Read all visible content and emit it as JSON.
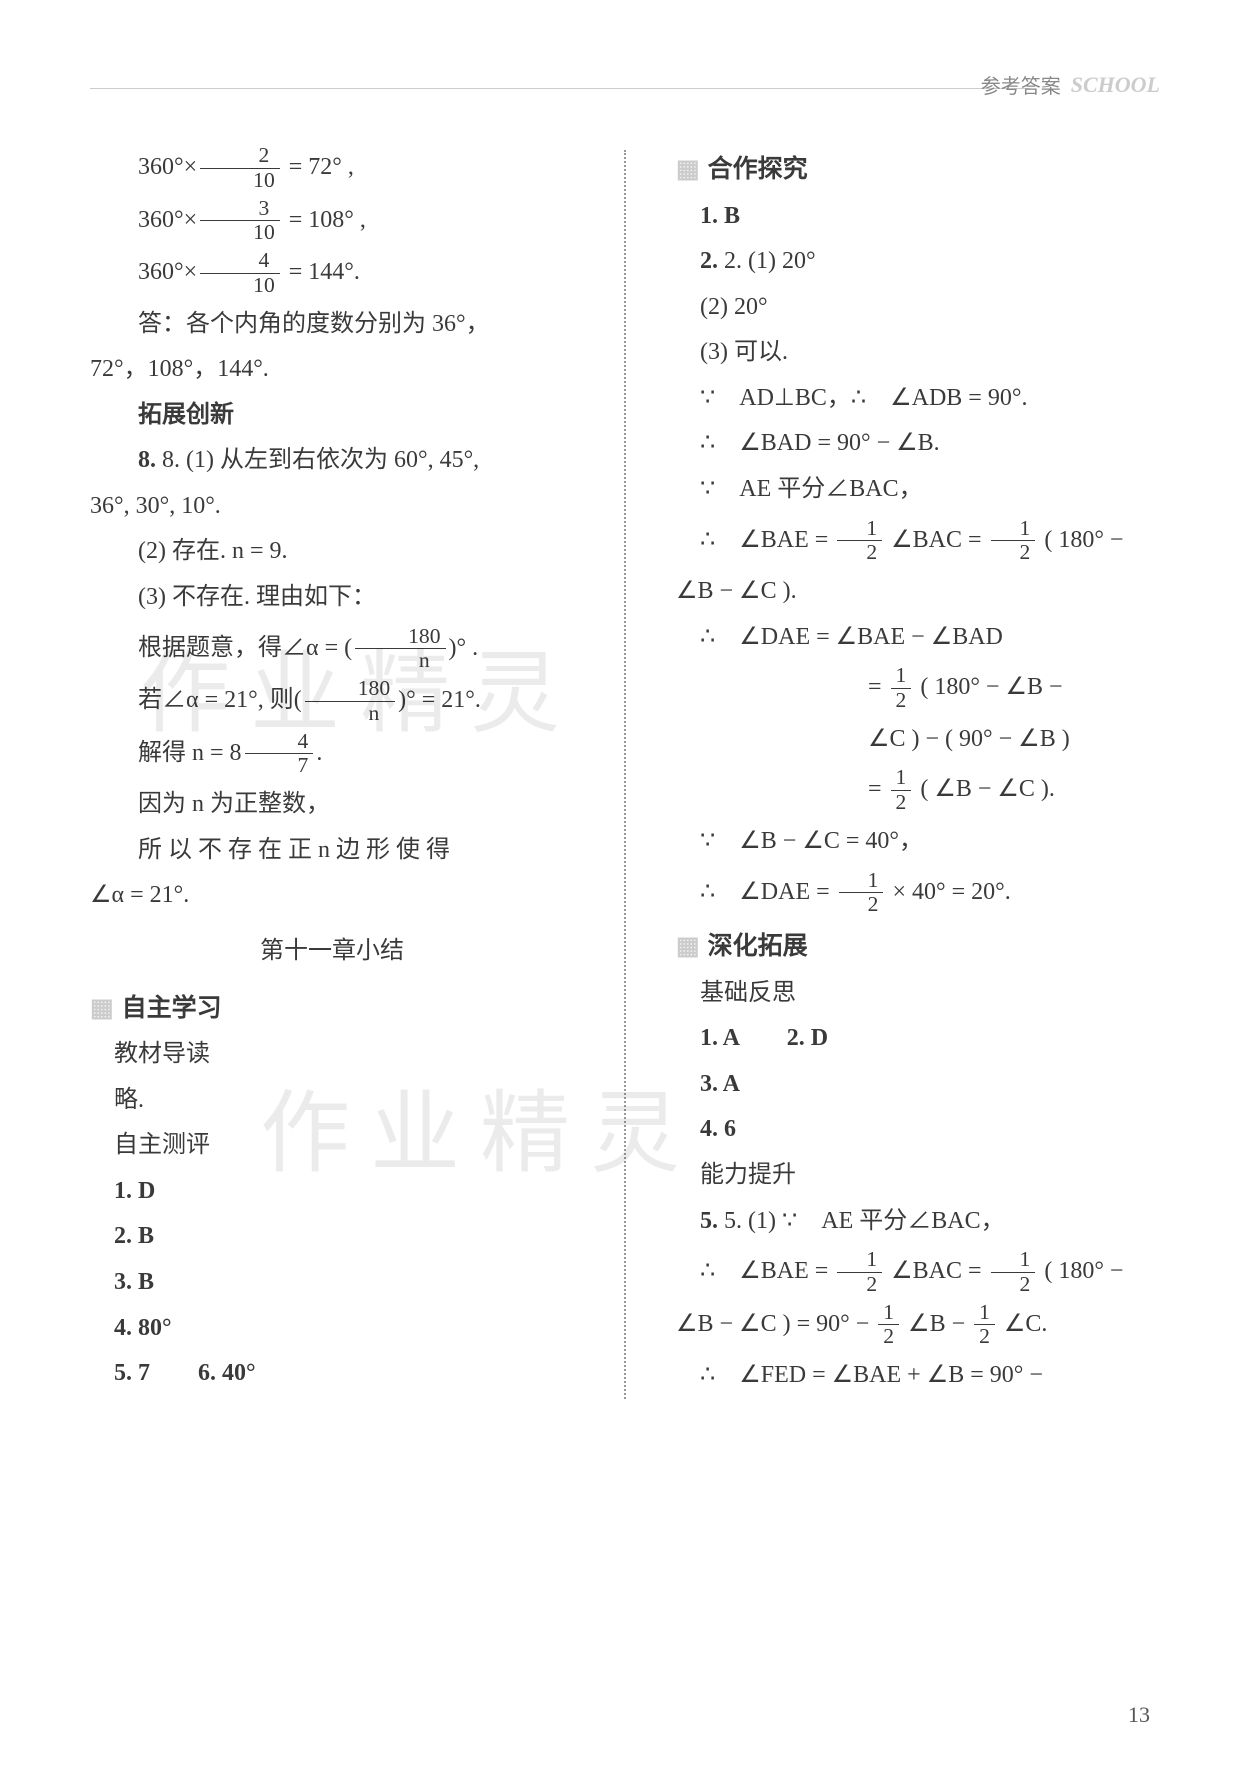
{
  "header": {
    "label": "参考答案",
    "logo": "SCHOOL"
  },
  "left": {
    "l1": "360°×",
    "l1b": " = 72° ,",
    "f1n": "2",
    "f1d": "10",
    "l2": "360°×",
    "l2b": " = 108° ,",
    "f2n": "3",
    "f2d": "10",
    "l3": "360°×",
    "l3b": " = 144°.",
    "f3n": "4",
    "f3d": "10",
    "ans1a": "答：各个内角的度数分别为 36°，",
    "ans1b": "72°，108°，144°.",
    "sec_tzcx": "拓展创新",
    "q8a": "8. (1) 从左到右依次为 60°, 45°,",
    "q8b": "36°, 30°, 10°.",
    "q8_2": "(2) 存在. n = 9.",
    "q8_3": "(3) 不存在. 理由如下：",
    "q8_4a": "根据题意，得∠α = ",
    "q8_4n": "180",
    "q8_4d": "n",
    "q8_4b": " .",
    "q8_5a": "若∠α = 21°, 则",
    "q8_5n": "180",
    "q8_5d": "n",
    "q8_5b": " = 21°.",
    "q8_6a": "解得 n = 8",
    "q8_6n": "4",
    "q8_6d": "7",
    "q8_6b": ".",
    "q8_7": "因为 n 为正整数，",
    "q8_8": "所 以 不 存 在 正 n 边 形 使 得",
    "q8_9": "∠α = 21°.",
    "chapter": "第十一章小结",
    "sec_zzxx": "自主学习",
    "sub_jcdd": "教材导读",
    "lue": "略.",
    "sub_zzcp": "自主测评",
    "a1": "1. D",
    "a2": "2. B",
    "a3": "3. B",
    "a4": "4. 80°",
    "a5": "5. 7",
    "a6": "6. 40°"
  },
  "right": {
    "sec_hztj": "合作探究",
    "b1": "1. B",
    "b2_1": "2. (1) 20°",
    "b2_2": "(2) 20°",
    "b2_3": "(3) 可以.",
    "p1": "∵　AD⊥BC，∴　∠ADB = 90°.",
    "p2": "∴　∠BAD = 90° − ∠B.",
    "p3": "∵　AE 平分∠BAC，",
    "p4a": "∴　∠BAE = ",
    "p4n": "1",
    "p4d": "2",
    "p4b": " ∠BAC = ",
    "p4c": " ( 180° −",
    "p4end": "∠B − ∠C ).",
    "p5": "∴　∠DAE = ∠BAE − ∠BAD",
    "p6a": "= ",
    "p6n": "1",
    "p6d": "2",
    "p6b": " ( 180° − ∠B −",
    "p7": "∠C ) − ( 90° − ∠B )",
    "p8a": "= ",
    "p8n": "1",
    "p8d": "2",
    "p8b": " ( ∠B − ∠C ).",
    "p9": "∵　∠B − ∠C = 40°，",
    "p10a": "∴　∠DAE = ",
    "p10n": "1",
    "p10d": "2",
    "p10b": " × 40° = 20°.",
    "sec_shtz": "深化拓展",
    "sub_jcfs": "基础反思",
    "c1": "1. A",
    "c2": "2. D",
    "c3": "3. A",
    "c4": "4. 6",
    "sub_nlts": "能力提升",
    "q5a": "5. (1) ∵　AE 平分∠BAC，",
    "q5b_a": "∴　∠BAE = ",
    "q5b_n": "1",
    "q5b_d": "2",
    "q5b_b": " ∠BAC = ",
    "q5b_c": " ( 180° −",
    "q5c_a": "∠B − ∠C ) = 90° − ",
    "q5c_n": "1",
    "q5c_d": "2",
    "q5c_b": " ∠B − ",
    "q5c_c": " ∠C.",
    "q5d": "∴　∠FED = ∠BAE + ∠B = 90° −"
  },
  "pagenum": "13",
  "watermark": "作业精灵"
}
